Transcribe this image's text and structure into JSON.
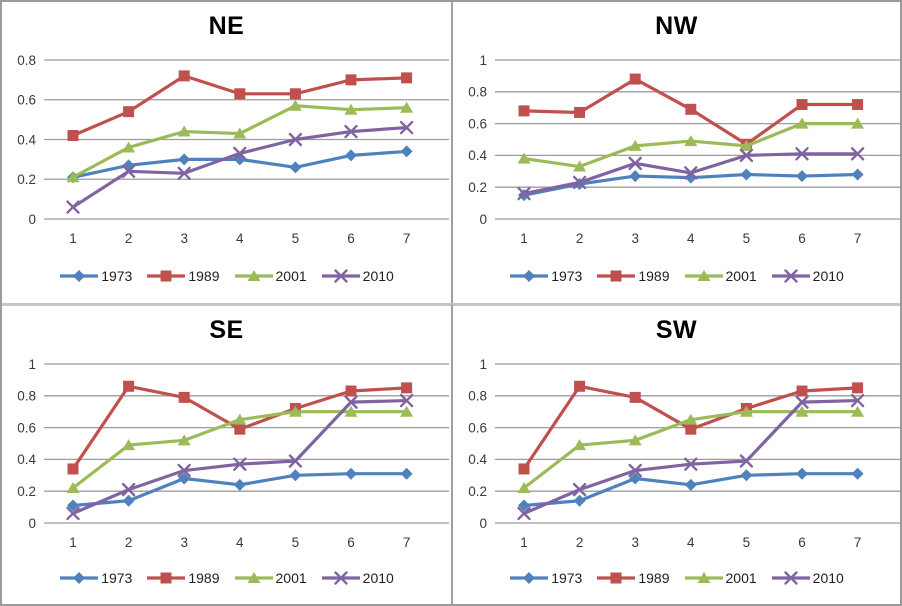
{
  "palette": {
    "series_blue": "#4F81BD",
    "series_red": "#C0504D",
    "series_green": "#9BBB59",
    "series_purple": "#8064A2",
    "gridline": "#9c9c9c",
    "tick_text": "#3a3a3a",
    "title_text": "#000000"
  },
  "chart_data": [
    {
      "id": "ne",
      "type": "line",
      "title": "NE",
      "x": [
        1,
        2,
        3,
        4,
        5,
        6,
        7
      ],
      "xlabel": "",
      "ylabel": "",
      "ylim": [
        0,
        0.8
      ],
      "yticks": [
        0,
        0.2,
        0.4,
        0.6,
        0.8
      ],
      "grid": true,
      "legend_position": "bottom",
      "series": [
        {
          "name": "1973",
          "color": "#4F81BD",
          "marker": "diamond",
          "values": [
            0.21,
            0.27,
            0.3,
            0.3,
            0.26,
            0.32,
            0.34
          ]
        },
        {
          "name": "1989",
          "color": "#C0504D",
          "marker": "square",
          "values": [
            0.42,
            0.54,
            0.72,
            0.63,
            0.63,
            0.7,
            0.71
          ]
        },
        {
          "name": "2001",
          "color": "#9BBB59",
          "marker": "triangle",
          "values": [
            0.21,
            0.36,
            0.44,
            0.43,
            0.57,
            0.55,
            0.56
          ]
        },
        {
          "name": "2010",
          "color": "#8064A2",
          "marker": "x",
          "values": [
            0.06,
            0.24,
            0.23,
            0.33,
            0.4,
            0.44,
            0.46
          ]
        }
      ]
    },
    {
      "id": "nw",
      "type": "line",
      "title": "NW",
      "x": [
        1,
        2,
        3,
        4,
        5,
        6,
        7
      ],
      "xlabel": "",
      "ylabel": "",
      "ylim": [
        0,
        1
      ],
      "yticks": [
        0,
        0.2,
        0.4,
        0.6,
        0.8,
        1
      ],
      "grid": true,
      "legend_position": "bottom",
      "series": [
        {
          "name": "1973",
          "color": "#4F81BD",
          "marker": "diamond",
          "values": [
            0.15,
            0.22,
            0.27,
            0.26,
            0.28,
            0.27,
            0.28
          ]
        },
        {
          "name": "1989",
          "color": "#C0504D",
          "marker": "square",
          "values": [
            0.68,
            0.67,
            0.88,
            0.69,
            0.47,
            0.72,
            0.72
          ]
        },
        {
          "name": "2001",
          "color": "#9BBB59",
          "marker": "triangle",
          "values": [
            0.38,
            0.33,
            0.46,
            0.49,
            0.46,
            0.6,
            0.6
          ]
        },
        {
          "name": "2010",
          "color": "#8064A2",
          "marker": "x",
          "values": [
            0.16,
            0.23,
            0.35,
            0.29,
            0.4,
            0.41,
            0.41
          ]
        }
      ]
    },
    {
      "id": "se",
      "type": "line",
      "title": "SE",
      "x": [
        1,
        2,
        3,
        4,
        5,
        6,
        7
      ],
      "xlabel": "",
      "ylabel": "",
      "ylim": [
        0,
        1
      ],
      "yticks": [
        0,
        0.2,
        0.4,
        0.6,
        0.8,
        1
      ],
      "grid": true,
      "legend_position": "bottom",
      "series": [
        {
          "name": "1973",
          "color": "#4F81BD",
          "marker": "diamond",
          "values": [
            0.11,
            0.14,
            0.28,
            0.24,
            0.3,
            0.31,
            0.31
          ]
        },
        {
          "name": "1989",
          "color": "#C0504D",
          "marker": "square",
          "values": [
            0.34,
            0.86,
            0.79,
            0.59,
            0.72,
            0.83,
            0.85
          ]
        },
        {
          "name": "2001",
          "color": "#9BBB59",
          "marker": "triangle",
          "values": [
            0.22,
            0.49,
            0.52,
            0.65,
            0.7,
            0.7,
            0.7
          ]
        },
        {
          "name": "2010",
          "color": "#8064A2",
          "marker": "x",
          "values": [
            0.06,
            0.21,
            0.33,
            0.37,
            0.39,
            0.76,
            0.77
          ]
        }
      ]
    },
    {
      "id": "sw",
      "type": "line",
      "title": "SW",
      "x": [
        1,
        2,
        3,
        4,
        5,
        6,
        7
      ],
      "xlabel": "",
      "ylabel": "",
      "ylim": [
        0,
        1
      ],
      "yticks": [
        0,
        0.2,
        0.4,
        0.6,
        0.8,
        1
      ],
      "grid": true,
      "legend_position": "bottom",
      "series": [
        {
          "name": "1973",
          "color": "#4F81BD",
          "marker": "diamond",
          "values": [
            0.11,
            0.14,
            0.28,
            0.24,
            0.3,
            0.31,
            0.31
          ]
        },
        {
          "name": "1989",
          "color": "#C0504D",
          "marker": "square",
          "values": [
            0.34,
            0.86,
            0.79,
            0.59,
            0.72,
            0.83,
            0.85
          ]
        },
        {
          "name": "2001",
          "color": "#9BBB59",
          "marker": "triangle",
          "values": [
            0.22,
            0.49,
            0.52,
            0.65,
            0.7,
            0.7,
            0.7
          ]
        },
        {
          "name": "2010",
          "color": "#8064A2",
          "marker": "x",
          "values": [
            0.06,
            0.21,
            0.33,
            0.37,
            0.39,
            0.76,
            0.77
          ]
        }
      ]
    }
  ]
}
